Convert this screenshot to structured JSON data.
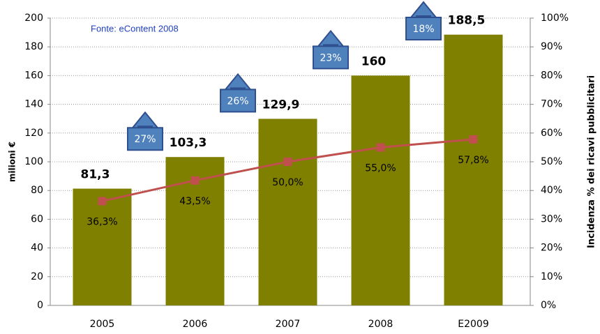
{
  "chart_data": {
    "type": "bar",
    "annotation": "Fonte: eContent 2008",
    "ylabel": "milioni €",
    "y2label": "Incidenza % dei ricavi pubblicitari",
    "categories": [
      "2005",
      "2006",
      "2007",
      "2008",
      "E2009"
    ],
    "series": [
      {
        "type": "bar",
        "color": "#808000",
        "values": [
          81.3,
          103.3,
          129.9,
          160,
          188.5
        ],
        "value_labels": [
          "81,3",
          "103,3",
          "129,9",
          "160",
          "188,5"
        ]
      },
      {
        "type": "line",
        "axis": "y2",
        "color": "#c0504d",
        "values": [
          36.3,
          43.5,
          50.0,
          55.0,
          57.8
        ],
        "value_labels": [
          "36,3%",
          "43,5%",
          "50,0%",
          "55,0%",
          "57,8%"
        ]
      }
    ],
    "growth": {
      "color": "#4f81bd",
      "values": [
        27,
        26,
        23,
        18
      ],
      "value_labels": [
        "27%",
        "26%",
        "23%",
        "18%"
      ]
    },
    "ylim": [
      0,
      200
    ],
    "yticks": [
      0,
      20,
      40,
      60,
      80,
      100,
      120,
      140,
      160,
      180,
      200
    ],
    "y2lim": [
      0,
      100
    ],
    "y2ticks": [
      {
        "value": 0,
        "label": "0%"
      },
      {
        "value": 10,
        "label": "10%"
      },
      {
        "value": 20,
        "label": "20%"
      },
      {
        "value": 30,
        "label": "30%"
      },
      {
        "value": 40,
        "label": "40%"
      },
      {
        "value": 50,
        "label": "50%"
      },
      {
        "value": 60,
        "label": "60%"
      },
      {
        "value": 70,
        "label": "70%"
      },
      {
        "value": 80,
        "label": "80%"
      },
      {
        "value": 90,
        "label": "90%"
      },
      {
        "value": 100,
        "label": "100%"
      }
    ],
    "grid": true
  }
}
